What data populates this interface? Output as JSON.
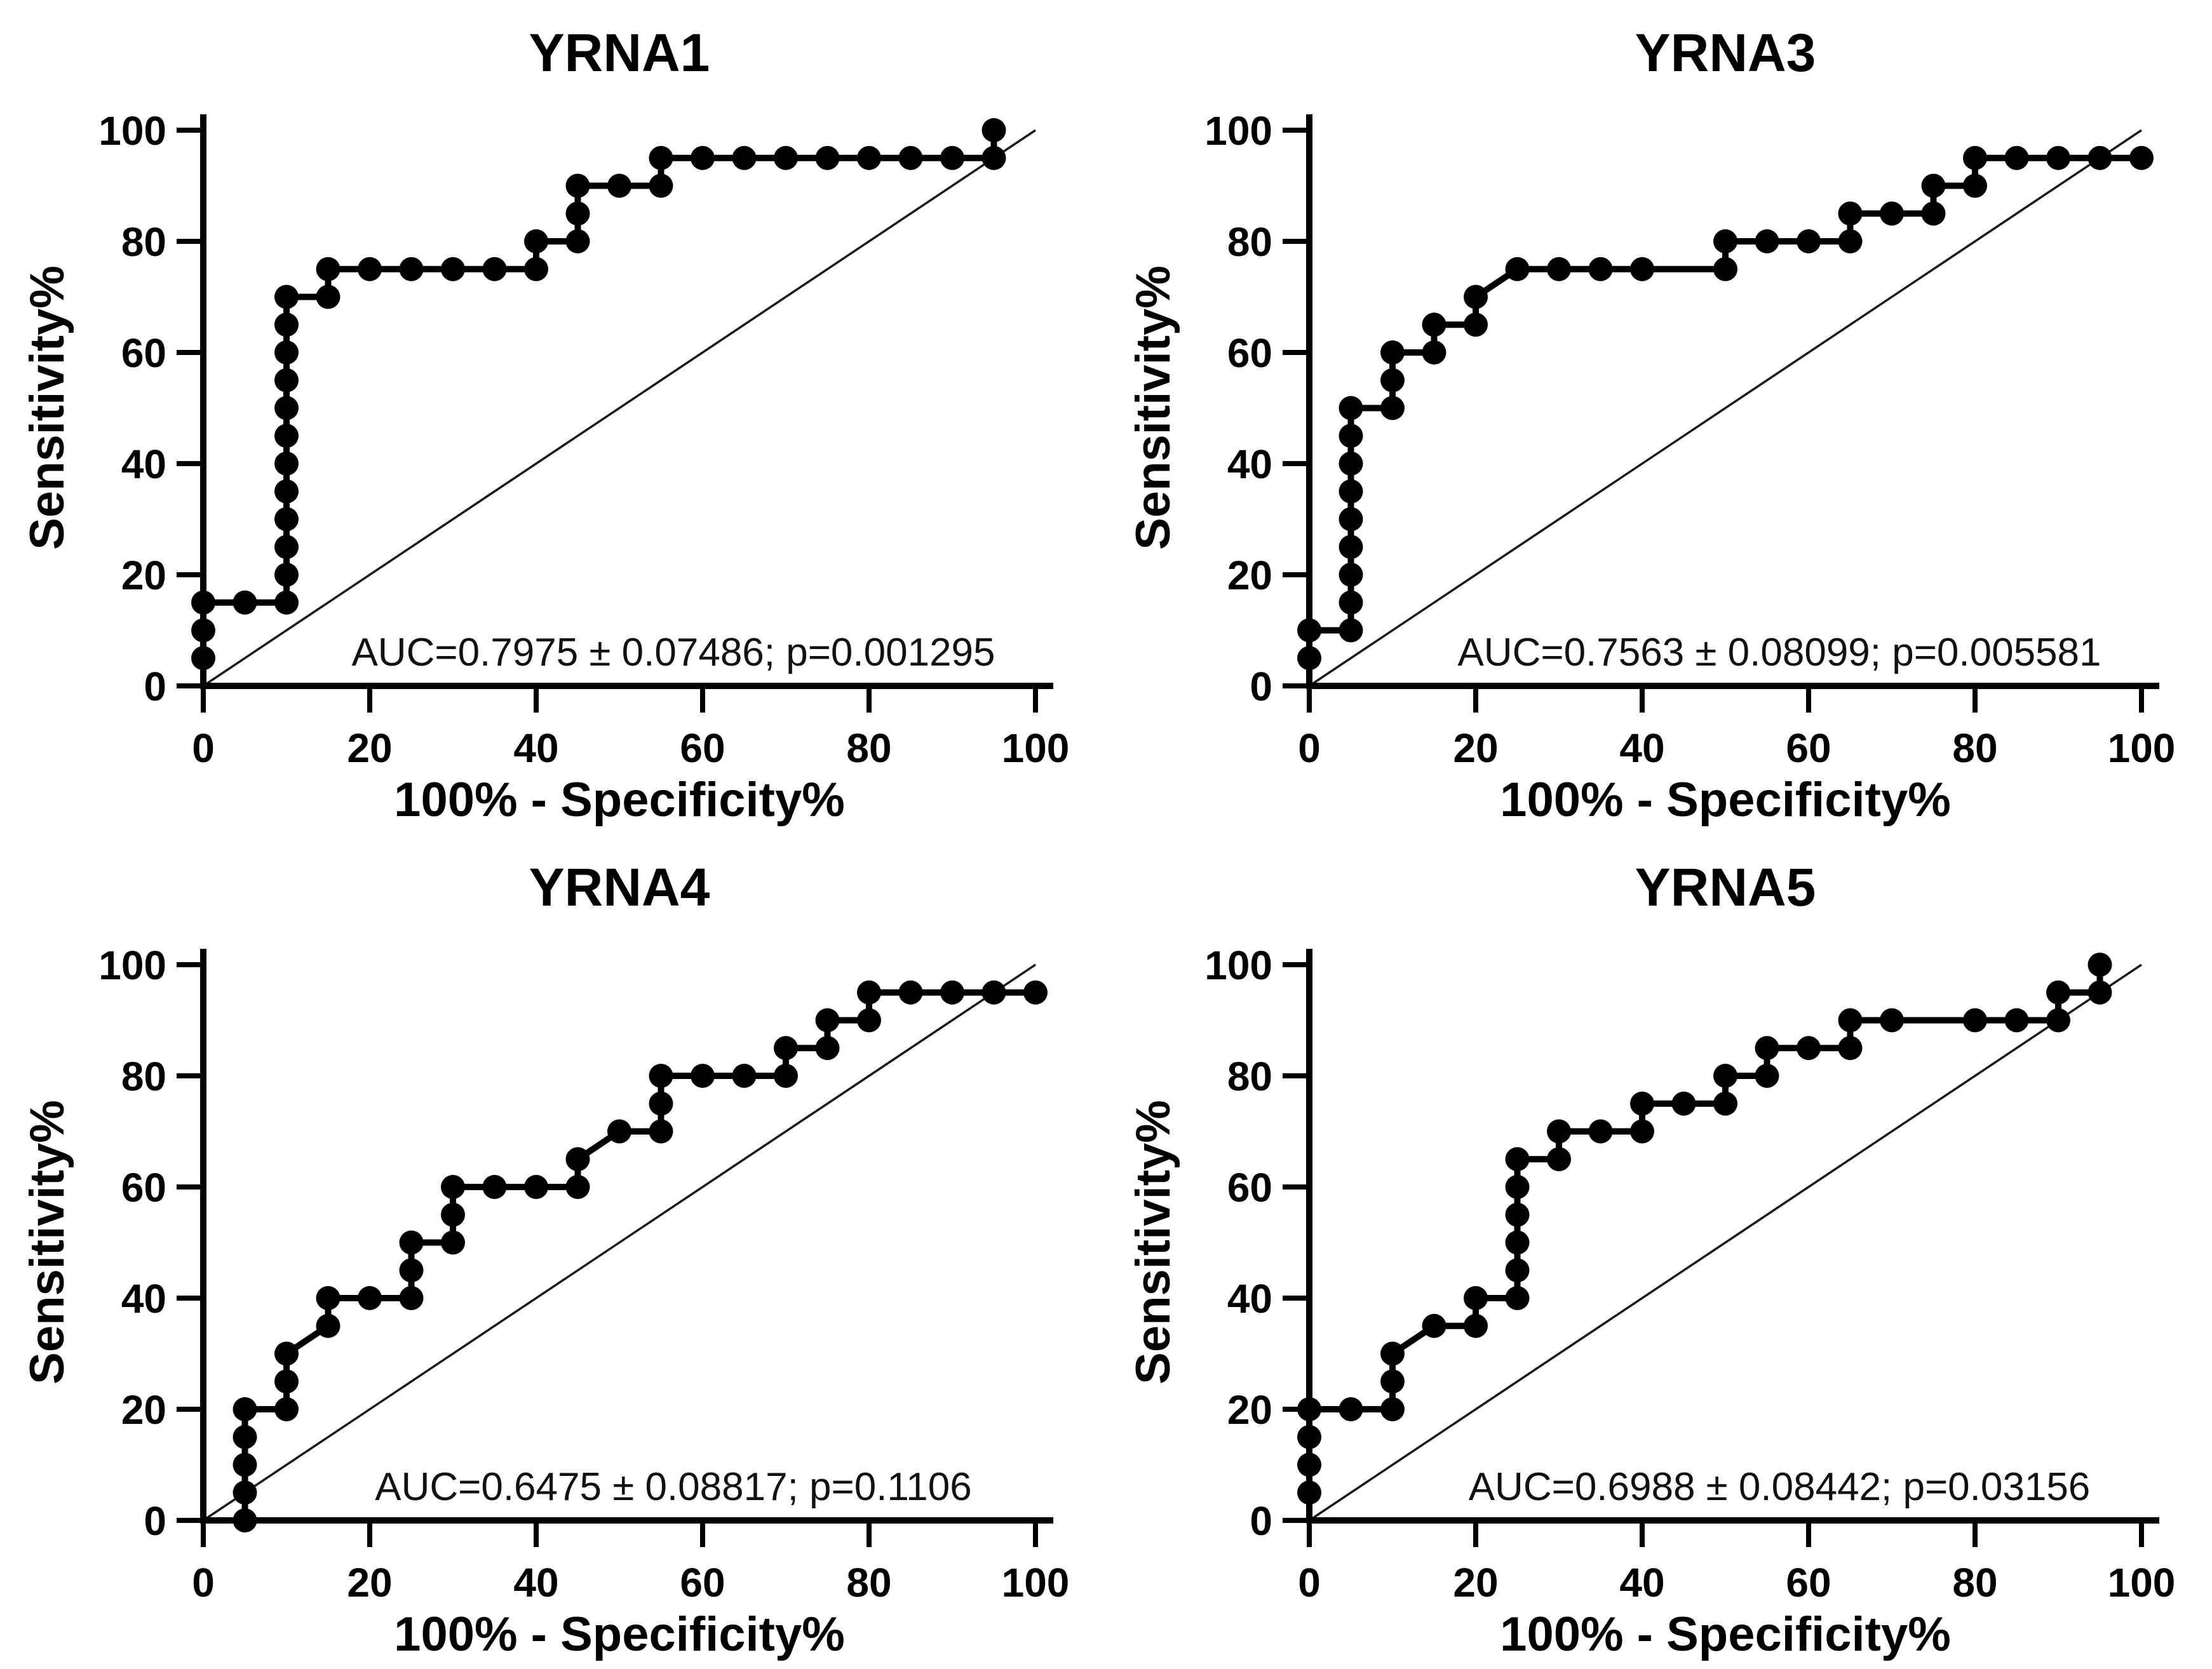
{
  "figure": {
    "background_color": "#ffffff",
    "curve_color": "#000000",
    "reference_line_color": "#1a1a1a"
  },
  "chart_data": [
    {
      "id": "yrna1",
      "type": "line",
      "title": "YRNA1",
      "xlabel": "100% - Specificity%",
      "ylabel": "Sensitivity%",
      "annotation": "AUC=0.7975 ± 0.07486; p=0.001295",
      "auc": 0.7975,
      "auc_se": 0.07486,
      "p_value": 0.001295,
      "xlim": [
        0,
        100
      ],
      "ylim": [
        0,
        100
      ],
      "x_ticks": [
        0,
        20,
        40,
        60,
        80,
        100
      ],
      "y_ticks": [
        0,
        20,
        40,
        60,
        80,
        100
      ],
      "grid": false,
      "legend": "none",
      "marker": "filled-circle",
      "color": "#000000",
      "reference_line": {
        "from": [
          0,
          0
        ],
        "to": [
          100,
          100
        ]
      },
      "points": [
        [
          0,
          5
        ],
        [
          0,
          10
        ],
        [
          0,
          15
        ],
        [
          5,
          15
        ],
        [
          10,
          15
        ],
        [
          10,
          20
        ],
        [
          10,
          25
        ],
        [
          10,
          30
        ],
        [
          10,
          35
        ],
        [
          10,
          40
        ],
        [
          10,
          45
        ],
        [
          10,
          50
        ],
        [
          10,
          55
        ],
        [
          10,
          60
        ],
        [
          10,
          65
        ],
        [
          10,
          70
        ],
        [
          15,
          70
        ],
        [
          15,
          75
        ],
        [
          20,
          75
        ],
        [
          25,
          75
        ],
        [
          30,
          75
        ],
        [
          35,
          75
        ],
        [
          40,
          75
        ],
        [
          40,
          80
        ],
        [
          45,
          80
        ],
        [
          45,
          85
        ],
        [
          45,
          90
        ],
        [
          50,
          90
        ],
        [
          55,
          90
        ],
        [
          55,
          95
        ],
        [
          60,
          95
        ],
        [
          65,
          95
        ],
        [
          70,
          95
        ],
        [
          75,
          95
        ],
        [
          80,
          95
        ],
        [
          85,
          95
        ],
        [
          90,
          95
        ],
        [
          95,
          95
        ],
        [
          95,
          100
        ]
      ]
    },
    {
      "id": "yrna3",
      "type": "line",
      "title": "YRNA3",
      "xlabel": "100% - Specificity%",
      "ylabel": "Sensitivity%",
      "annotation": "AUC=0.7563 ± 0.08099; p=0.005581",
      "auc": 0.7563,
      "auc_se": 0.08099,
      "p_value": 0.005581,
      "xlim": [
        0,
        100
      ],
      "ylim": [
        0,
        100
      ],
      "x_ticks": [
        0,
        20,
        40,
        60,
        80,
        100
      ],
      "y_ticks": [
        0,
        20,
        40,
        60,
        80,
        100
      ],
      "grid": false,
      "legend": "none",
      "marker": "filled-circle",
      "color": "#000000",
      "reference_line": {
        "from": [
          0,
          0
        ],
        "to": [
          100,
          100
        ]
      },
      "points": [
        [
          0,
          5
        ],
        [
          0,
          10
        ],
        [
          5,
          10
        ],
        [
          5,
          15
        ],
        [
          5,
          20
        ],
        [
          5,
          25
        ],
        [
          5,
          30
        ],
        [
          5,
          35
        ],
        [
          5,
          40
        ],
        [
          5,
          45
        ],
        [
          5,
          50
        ],
        [
          10,
          50
        ],
        [
          10,
          55
        ],
        [
          10,
          60
        ],
        [
          15,
          60
        ],
        [
          15,
          65
        ],
        [
          20,
          65
        ],
        [
          20,
          70
        ],
        [
          25,
          75
        ],
        [
          30,
          75
        ],
        [
          35,
          75
        ],
        [
          40,
          75
        ],
        [
          50,
          75
        ],
        [
          50,
          80
        ],
        [
          55,
          80
        ],
        [
          60,
          80
        ],
        [
          65,
          80
        ],
        [
          65,
          85
        ],
        [
          70,
          85
        ],
        [
          75,
          85
        ],
        [
          75,
          90
        ],
        [
          80,
          90
        ],
        [
          80,
          95
        ],
        [
          85,
          95
        ],
        [
          90,
          95
        ],
        [
          95,
          95
        ],
        [
          100,
          95
        ]
      ]
    },
    {
      "id": "yrna4",
      "type": "line",
      "title": "YRNA4",
      "xlabel": "100% - Specificity%",
      "ylabel": "Sensitivity%",
      "annotation": "AUC=0.6475 ± 0.08817; p=0.1106",
      "auc": 0.6475,
      "auc_se": 0.08817,
      "p_value": 0.1106,
      "xlim": [
        0,
        100
      ],
      "ylim": [
        0,
        100
      ],
      "x_ticks": [
        0,
        20,
        40,
        60,
        80,
        100
      ],
      "y_ticks": [
        0,
        20,
        40,
        60,
        80,
        100
      ],
      "grid": false,
      "legend": "none",
      "marker": "filled-circle",
      "color": "#000000",
      "reference_line": {
        "from": [
          0,
          0
        ],
        "to": [
          100,
          100
        ]
      },
      "points": [
        [
          5,
          0
        ],
        [
          5,
          5
        ],
        [
          5,
          10
        ],
        [
          5,
          15
        ],
        [
          5,
          20
        ],
        [
          10,
          20
        ],
        [
          10,
          25
        ],
        [
          10,
          30
        ],
        [
          15,
          35
        ],
        [
          15,
          40
        ],
        [
          20,
          40
        ],
        [
          25,
          40
        ],
        [
          25,
          45
        ],
        [
          25,
          50
        ],
        [
          30,
          50
        ],
        [
          30,
          55
        ],
        [
          30,
          60
        ],
        [
          35,
          60
        ],
        [
          40,
          60
        ],
        [
          45,
          60
        ],
        [
          45,
          65
        ],
        [
          50,
          70
        ],
        [
          55,
          70
        ],
        [
          55,
          75
        ],
        [
          55,
          80
        ],
        [
          60,
          80
        ],
        [
          65,
          80
        ],
        [
          70,
          80
        ],
        [
          70,
          85
        ],
        [
          75,
          85
        ],
        [
          75,
          90
        ],
        [
          80,
          90
        ],
        [
          80,
          95
        ],
        [
          85,
          95
        ],
        [
          90,
          95
        ],
        [
          95,
          95
        ],
        [
          100,
          95
        ]
      ]
    },
    {
      "id": "yrna5",
      "type": "line",
      "title": "YRNA5",
      "xlabel": "100% - Specificity%",
      "ylabel": "Sensitivity%",
      "annotation": "AUC=0.6988 ± 0.08442; p=0.03156",
      "auc": 0.6988,
      "auc_se": 0.08442,
      "p_value": 0.03156,
      "xlim": [
        0,
        100
      ],
      "ylim": [
        0,
        100
      ],
      "x_ticks": [
        0,
        20,
        40,
        60,
        80,
        100
      ],
      "y_ticks": [
        0,
        20,
        40,
        60,
        80,
        100
      ],
      "grid": false,
      "legend": "none",
      "marker": "filled-circle",
      "color": "#000000",
      "reference_line": {
        "from": [
          0,
          0
        ],
        "to": [
          100,
          100
        ]
      },
      "points": [
        [
          0,
          5
        ],
        [
          0,
          10
        ],
        [
          0,
          15
        ],
        [
          0,
          20
        ],
        [
          5,
          20
        ],
        [
          10,
          20
        ],
        [
          10,
          25
        ],
        [
          10,
          30
        ],
        [
          15,
          35
        ],
        [
          20,
          35
        ],
        [
          20,
          40
        ],
        [
          25,
          40
        ],
        [
          25,
          45
        ],
        [
          25,
          50
        ],
        [
          25,
          55
        ],
        [
          25,
          60
        ],
        [
          25,
          65
        ],
        [
          30,
          65
        ],
        [
          30,
          70
        ],
        [
          35,
          70
        ],
        [
          40,
          70
        ],
        [
          40,
          75
        ],
        [
          45,
          75
        ],
        [
          50,
          75
        ],
        [
          50,
          80
        ],
        [
          55,
          80
        ],
        [
          55,
          85
        ],
        [
          60,
          85
        ],
        [
          65,
          85
        ],
        [
          65,
          90
        ],
        [
          70,
          90
        ],
        [
          80,
          90
        ],
        [
          85,
          90
        ],
        [
          90,
          90
        ],
        [
          90,
          95
        ],
        [
          95,
          95
        ],
        [
          95,
          100
        ]
      ]
    }
  ]
}
